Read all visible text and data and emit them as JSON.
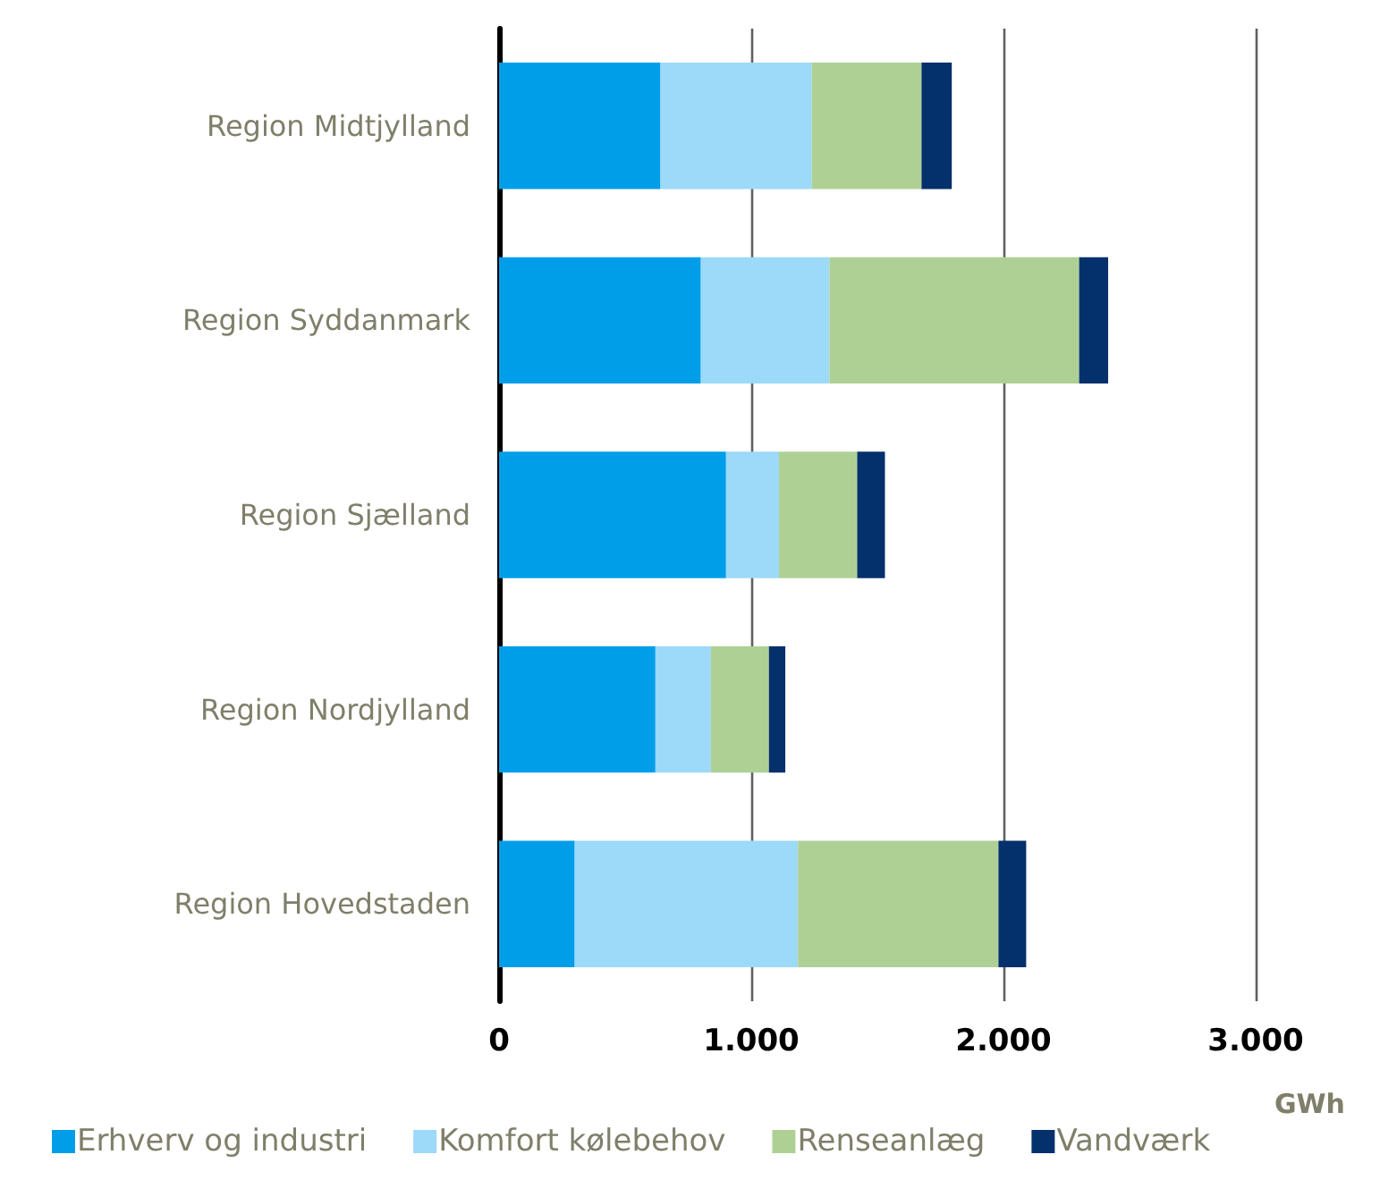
{
  "chart_data": {
    "type": "bar",
    "orientation": "horizontal",
    "stacked": true,
    "xlabel": "GWh",
    "categories": [
      "Region Midtjylland",
      "Region Syddanmark",
      "Region Sjælland",
      "Region Nordjylland",
      "Region Hovedstaden"
    ],
    "series": [
      {
        "name": "Erhverv og industri",
        "color": "#009ee9",
        "values": [
          640,
          800,
          900,
          620,
          300
        ]
      },
      {
        "name": "Komfort kølebehov",
        "color": "#9dd9f8",
        "values": [
          600,
          510,
          210,
          220,
          885
        ]
      },
      {
        "name": "Renseanlæg",
        "color": "#afd095",
        "values": [
          435,
          990,
          310,
          230,
          795
        ]
      },
      {
        "name": "Vandværk",
        "color": "#04306c",
        "values": [
          120,
          115,
          110,
          65,
          110
        ]
      }
    ],
    "xlim": [
      0,
      3000
    ],
    "xticks": [
      0,
      {
        "value": 1000,
        "label": "1.000"
      },
      {
        "value": 2000,
        "label": "2.000"
      },
      {
        "value": 3000,
        "label": "3.000"
      }
    ],
    "grid": "x",
    "legend": "bottom"
  }
}
